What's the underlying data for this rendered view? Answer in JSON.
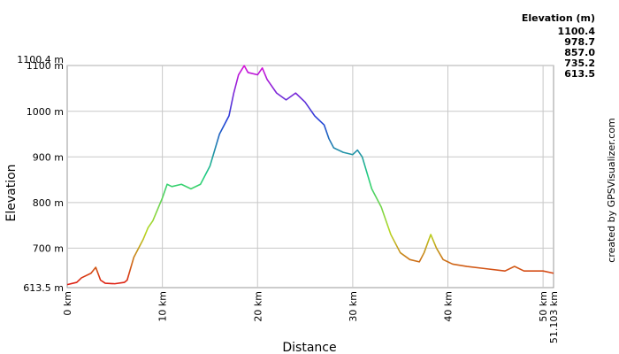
{
  "chart_data": {
    "type": "line",
    "x_label": "Distance",
    "y_label": "Elevation",
    "credit": "created by GPSVisualizer.com",
    "legend_title": "Elevation (m)",
    "color_scale": [
      {
        "value": 1100.4,
        "color": "#d810d8"
      },
      {
        "value": 978.7,
        "color": "#2040d8"
      },
      {
        "value": 857.0,
        "label": "857.0",
        "color": "#20d080"
      },
      {
        "value": 735.2,
        "color": "#b8d820"
      },
      {
        "value": 613.5,
        "color": "#e01010"
      }
    ],
    "xlim": [
      0,
      51.103
    ],
    "ylim": [
      613.5,
      1100.4
    ],
    "xticks": [
      {
        "value": 0,
        "label": "0 km"
      },
      {
        "value": 10,
        "label": "10 km"
      },
      {
        "value": 20,
        "label": "20 km"
      },
      {
        "value": 30,
        "label": "30 km"
      },
      {
        "value": 40,
        "label": "40 km"
      },
      {
        "value": 50,
        "label": "50 km"
      },
      {
        "value": 51.103,
        "label": "51.103 km"
      }
    ],
    "yticks": [
      {
        "value": 613.5,
        "label": "613.5 m"
      },
      {
        "value": 700,
        "label": "700 m"
      },
      {
        "value": 800,
        "label": "800 m"
      },
      {
        "value": 900,
        "label": "900 m"
      },
      {
        "value": 1000,
        "label": "1000 m"
      },
      {
        "value": 1100,
        "label": "1100 m"
      },
      {
        "value": 1100.4,
        "label": "1100.4 m"
      }
    ],
    "grid": true,
    "series": [
      {
        "name": "Elevation",
        "x": [
          0,
          1,
          1.5,
          2.5,
          3,
          3.5,
          4,
          5,
          6,
          6.3,
          7,
          8,
          8.5,
          9,
          9.5,
          10,
          10.5,
          11,
          12,
          13,
          14,
          15,
          16,
          17,
          17.5,
          18,
          18.6,
          19,
          20,
          20.5,
          21,
          22,
          23,
          24,
          25,
          26,
          27,
          27.5,
          28,
          29,
          30,
          30.5,
          31,
          32,
          33,
          33.5,
          34,
          35,
          36,
          37,
          37.5,
          38.2,
          38.8,
          39.5,
          40.5,
          42,
          44,
          46,
          47,
          48,
          50,
          51.103
        ],
        "values": [
          620,
          625,
          635,
          645,
          658,
          630,
          623,
          622,
          625,
          630,
          680,
          720,
          745,
          760,
          785,
          810,
          840,
          835,
          840,
          830,
          840,
          880,
          950,
          990,
          1040,
          1080,
          1100,
          1085,
          1080,
          1095,
          1070,
          1040,
          1025,
          1040,
          1020,
          990,
          970,
          940,
          920,
          910,
          905,
          915,
          900,
          830,
          790,
          760,
          730,
          690,
          675,
          670,
          690,
          730,
          700,
          675,
          665,
          660,
          655,
          650,
          660,
          650,
          650,
          645
        ]
      }
    ]
  }
}
